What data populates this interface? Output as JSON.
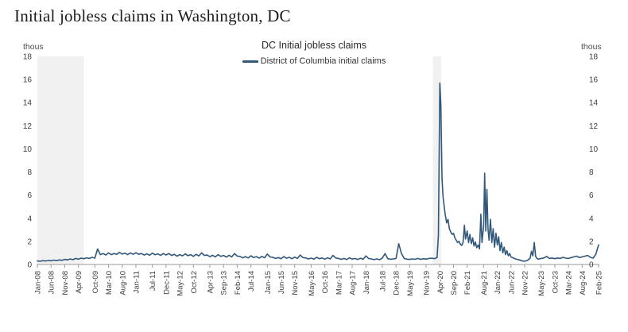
{
  "page": {
    "title": "Initial jobless claims in Washington, DC"
  },
  "chart": {
    "title": "DC Initial jobless claims",
    "legend": "District of Columbia initial claims",
    "unit_label_left": "thous",
    "unit_label_right": "thous",
    "line_color": "#31587a",
    "band_color": "#f1f1f1",
    "axis_color": "#9a9a9a",
    "tick_text_color": "#3d3d3d"
  },
  "chart_data": {
    "type": "line",
    "title": "DC Initial jobless claims",
    "series_name": "District of Columbia initial claims",
    "xlabel": "",
    "ylabel": "thous",
    "ylim": [
      0,
      18
    ],
    "yticks": [
      0,
      2,
      4,
      6,
      8,
      10,
      12,
      14,
      16,
      18
    ],
    "x_unit": "months since Jan-2008",
    "xlim": [
      0,
      205
    ],
    "grid": false,
    "legend_position": "top-center",
    "xticks": [
      {
        "label": "Jan-08",
        "month": 0
      },
      {
        "label": "Jun-08",
        "month": 5
      },
      {
        "label": "Nov-08",
        "month": 10
      },
      {
        "label": "Apr-09",
        "month": 15
      },
      {
        "label": "Oct-09",
        "month": 21
      },
      {
        "label": "Mar-10",
        "month": 26
      },
      {
        "label": "Aug-10",
        "month": 31
      },
      {
        "label": "Jan-11",
        "month": 36
      },
      {
        "label": "Jul-11",
        "month": 42
      },
      {
        "label": "Dec-11",
        "month": 47
      },
      {
        "label": "May-12",
        "month": 52
      },
      {
        "label": "Oct-12",
        "month": 57
      },
      {
        "label": "Apr-13",
        "month": 63
      },
      {
        "label": "Sep-13",
        "month": 68
      },
      {
        "label": "Feb-14",
        "month": 73
      },
      {
        "label": "Jul-14",
        "month": 78
      },
      {
        "label": "Jan-15",
        "month": 84
      },
      {
        "label": "Jun-15",
        "month": 89
      },
      {
        "label": "Nov-15",
        "month": 94
      },
      {
        "label": "May-16",
        "month": 100
      },
      {
        "label": "Oct-16",
        "month": 105
      },
      {
        "label": "Mar-17",
        "month": 110
      },
      {
        "label": "Aug-17",
        "month": 115
      },
      {
        "label": "Jan-18",
        "month": 120
      },
      {
        "label": "Jul-18",
        "month": 126
      },
      {
        "label": "Dec-18",
        "month": 131
      },
      {
        "label": "May-19",
        "month": 136
      },
      {
        "label": "Nov-19",
        "month": 142
      },
      {
        "label": "Apr-20",
        "month": 147
      },
      {
        "label": "Sep-20",
        "month": 152
      },
      {
        "label": "Feb-21",
        "month": 157
      },
      {
        "label": "Aug-21",
        "month": 163
      },
      {
        "label": "Jan-22",
        "month": 168
      },
      {
        "label": "Jun-22",
        "month": 173
      },
      {
        "label": "Nov-22",
        "month": 178
      },
      {
        "label": "May-23",
        "month": 184
      },
      {
        "label": "Oct-23",
        "month": 189
      },
      {
        "label": "Mar-24",
        "month": 194
      },
      {
        "label": "Aug-24",
        "month": 199
      },
      {
        "label": "Feb-25",
        "month": 205
      }
    ],
    "recession_bands": [
      [
        0,
        17
      ],
      [
        144.5,
        147.5
      ]
    ],
    "points": [
      [
        0,
        0.3
      ],
      [
        1,
        0.28
      ],
      [
        2,
        0.33
      ],
      [
        3,
        0.3
      ],
      [
        4,
        0.35
      ],
      [
        5,
        0.32
      ],
      [
        6,
        0.38
      ],
      [
        7,
        0.34
      ],
      [
        8,
        0.4
      ],
      [
        9,
        0.36
      ],
      [
        10,
        0.44
      ],
      [
        11,
        0.4
      ],
      [
        12,
        0.48
      ],
      [
        13,
        0.42
      ],
      [
        14,
        0.52
      ],
      [
        15,
        0.46
      ],
      [
        16,
        0.55
      ],
      [
        17,
        0.5
      ],
      [
        18,
        0.58
      ],
      [
        19,
        0.52
      ],
      [
        20,
        0.62
      ],
      [
        21,
        0.55
      ],
      [
        22,
        1.35
      ],
      [
        23,
        0.85
      ],
      [
        24,
        0.95
      ],
      [
        25,
        0.82
      ],
      [
        26,
        1.0
      ],
      [
        27,
        0.85
      ],
      [
        28,
        0.95
      ],
      [
        29,
        0.88
      ],
      [
        30,
        1.05
      ],
      [
        31,
        0.9
      ],
      [
        32,
        0.98
      ],
      [
        33,
        0.85
      ],
      [
        34,
        1.0
      ],
      [
        35,
        0.88
      ],
      [
        36,
        1.02
      ],
      [
        37,
        0.88
      ],
      [
        38,
        0.95
      ],
      [
        39,
        0.82
      ],
      [
        40,
        0.92
      ],
      [
        41,
        0.8
      ],
      [
        42,
        0.98
      ],
      [
        43,
        0.84
      ],
      [
        44,
        0.92
      ],
      [
        45,
        0.78
      ],
      [
        46,
        0.95
      ],
      [
        47,
        0.82
      ],
      [
        48,
        0.95
      ],
      [
        49,
        0.78
      ],
      [
        50,
        0.88
      ],
      [
        51,
        0.72
      ],
      [
        52,
        0.85
      ],
      [
        53,
        0.75
      ],
      [
        54,
        0.92
      ],
      [
        55,
        0.76
      ],
      [
        56,
        0.85
      ],
      [
        57,
        0.7
      ],
      [
        58,
        0.88
      ],
      [
        59,
        0.74
      ],
      [
        60,
        1.0
      ],
      [
        61,
        0.78
      ],
      [
        62,
        0.82
      ],
      [
        63,
        0.68
      ],
      [
        64,
        0.8
      ],
      [
        65,
        0.66
      ],
      [
        66,
        0.85
      ],
      [
        67,
        0.7
      ],
      [
        68,
        0.78
      ],
      [
        69,
        0.64
      ],
      [
        70,
        0.8
      ],
      [
        71,
        0.66
      ],
      [
        72,
        0.95
      ],
      [
        73,
        0.72
      ],
      [
        74,
        0.7
      ],
      [
        75,
        0.58
      ],
      [
        76,
        0.68
      ],
      [
        77,
        0.56
      ],
      [
        78,
        0.75
      ],
      [
        79,
        0.6
      ],
      [
        80,
        0.68
      ],
      [
        81,
        0.55
      ],
      [
        82,
        0.7
      ],
      [
        83,
        0.58
      ],
      [
        84,
        0.9
      ],
      [
        85,
        0.66
      ],
      [
        86,
        0.62
      ],
      [
        87,
        0.52
      ],
      [
        88,
        0.6
      ],
      [
        89,
        0.5
      ],
      [
        90,
        0.68
      ],
      [
        91,
        0.54
      ],
      [
        92,
        0.62
      ],
      [
        93,
        0.5
      ],
      [
        94,
        0.64
      ],
      [
        95,
        0.52
      ],
      [
        96,
        0.82
      ],
      [
        97,
        0.6
      ],
      [
        98,
        0.56
      ],
      [
        99,
        0.48
      ],
      [
        100,
        0.55
      ],
      [
        101,
        0.46
      ],
      [
        102,
        0.62
      ],
      [
        103,
        0.5
      ],
      [
        104,
        0.56
      ],
      [
        105,
        0.46
      ],
      [
        106,
        0.58
      ],
      [
        107,
        0.48
      ],
      [
        108,
        0.78
      ],
      [
        109,
        0.56
      ],
      [
        110,
        0.52
      ],
      [
        111,
        0.44
      ],
      [
        112,
        0.52
      ],
      [
        113,
        0.43
      ],
      [
        114,
        0.58
      ],
      [
        115,
        0.47
      ],
      [
        116,
        0.52
      ],
      [
        117,
        0.43
      ],
      [
        118,
        0.54
      ],
      [
        119,
        0.45
      ],
      [
        120,
        0.74
      ],
      [
        121,
        0.52
      ],
      [
        122,
        0.48
      ],
      [
        123,
        0.42
      ],
      [
        124,
        0.48
      ],
      [
        125,
        0.42
      ],
      [
        126,
        0.55
      ],
      [
        127,
        0.95
      ],
      [
        128,
        0.5
      ],
      [
        129,
        0.45
      ],
      [
        130,
        0.48
      ],
      [
        131,
        0.52
      ],
      [
        132,
        1.8
      ],
      [
        133,
        0.95
      ],
      [
        134,
        0.52
      ],
      [
        135,
        0.46
      ],
      [
        136,
        0.44
      ],
      [
        137,
        0.48
      ],
      [
        138,
        0.45
      ],
      [
        139,
        0.52
      ],
      [
        140,
        0.44
      ],
      [
        141,
        0.5
      ],
      [
        142,
        0.46
      ],
      [
        143,
        0.52
      ],
      [
        144,
        0.55
      ],
      [
        145,
        0.5
      ],
      [
        146,
        0.6
      ],
      [
        146.5,
        2.5
      ],
      [
        147,
        15.7
      ],
      [
        147.4,
        13.8
      ],
      [
        147.8,
        7.5
      ],
      [
        148.2,
        5.8
      ],
      [
        148.6,
        5.0
      ],
      [
        149,
        4.3
      ],
      [
        149.5,
        3.6
      ],
      [
        150,
        3.9
      ],
      [
        150.5,
        3.1
      ],
      [
        151,
        2.8
      ],
      [
        151.5,
        2.6
      ],
      [
        152,
        2.7
      ],
      [
        152.5,
        2.3
      ],
      [
        153,
        2.1
      ],
      [
        153.5,
        1.9
      ],
      [
        154,
        2.0
      ],
      [
        154.5,
        1.75
      ],
      [
        155,
        1.65
      ],
      [
        155.5,
        1.9
      ],
      [
        156,
        3.4
      ],
      [
        156.4,
        2.2
      ],
      [
        157,
        2.9
      ],
      [
        157.5,
        1.9
      ],
      [
        158,
        2.6
      ],
      [
        158.5,
        1.8
      ],
      [
        159,
        2.3
      ],
      [
        159.5,
        1.6
      ],
      [
        160,
        1.95
      ],
      [
        160.5,
        1.45
      ],
      [
        161,
        1.7
      ],
      [
        161.5,
        1.35
      ],
      [
        162,
        4.35
      ],
      [
        162.4,
        1.9
      ],
      [
        163,
        3.3
      ],
      [
        163.4,
        7.9
      ],
      [
        163.8,
        2.9
      ],
      [
        164.2,
        6.5
      ],
      [
        164.6,
        3.1
      ],
      [
        165,
        2.1
      ],
      [
        165.5,
        3.9
      ],
      [
        166,
        1.9
      ],
      [
        166.5,
        3.1
      ],
      [
        167,
        1.5
      ],
      [
        167.5,
        2.7
      ],
      [
        168,
        1.7
      ],
      [
        168.5,
        2.4
      ],
      [
        169,
        1.2
      ],
      [
        169.5,
        1.9
      ],
      [
        170,
        1.0
      ],
      [
        170.5,
        1.5
      ],
      [
        171,
        0.85
      ],
      [
        171.5,
        1.2
      ],
      [
        172,
        0.75
      ],
      [
        172.5,
        0.95
      ],
      [
        173,
        0.65
      ],
      [
        174,
        0.55
      ],
      [
        175,
        0.45
      ],
      [
        176,
        0.4
      ],
      [
        177,
        0.32
      ],
      [
        178,
        0.28
      ],
      [
        179,
        0.35
      ],
      [
        180,
        0.55
      ],
      [
        180.5,
        1.15
      ],
      [
        181,
        0.75
      ],
      [
        181.5,
        1.9
      ],
      [
        182,
        0.7
      ],
      [
        182.5,
        0.52
      ],
      [
        183,
        0.46
      ],
      [
        184,
        0.52
      ],
      [
        185,
        0.56
      ],
      [
        186,
        0.7
      ],
      [
        187,
        0.52
      ],
      [
        188,
        0.56
      ],
      [
        189,
        0.5
      ],
      [
        190,
        0.56
      ],
      [
        191,
        0.52
      ],
      [
        192,
        0.62
      ],
      [
        193,
        0.55
      ],
      [
        194,
        0.52
      ],
      [
        195,
        0.6
      ],
      [
        196,
        0.66
      ],
      [
        197,
        0.72
      ],
      [
        198,
        0.6
      ],
      [
        199,
        0.66
      ],
      [
        200,
        0.72
      ],
      [
        201,
        0.78
      ],
      [
        202,
        0.62
      ],
      [
        203,
        0.55
      ],
      [
        204,
        0.9
      ],
      [
        205,
        1.7
      ]
    ]
  }
}
